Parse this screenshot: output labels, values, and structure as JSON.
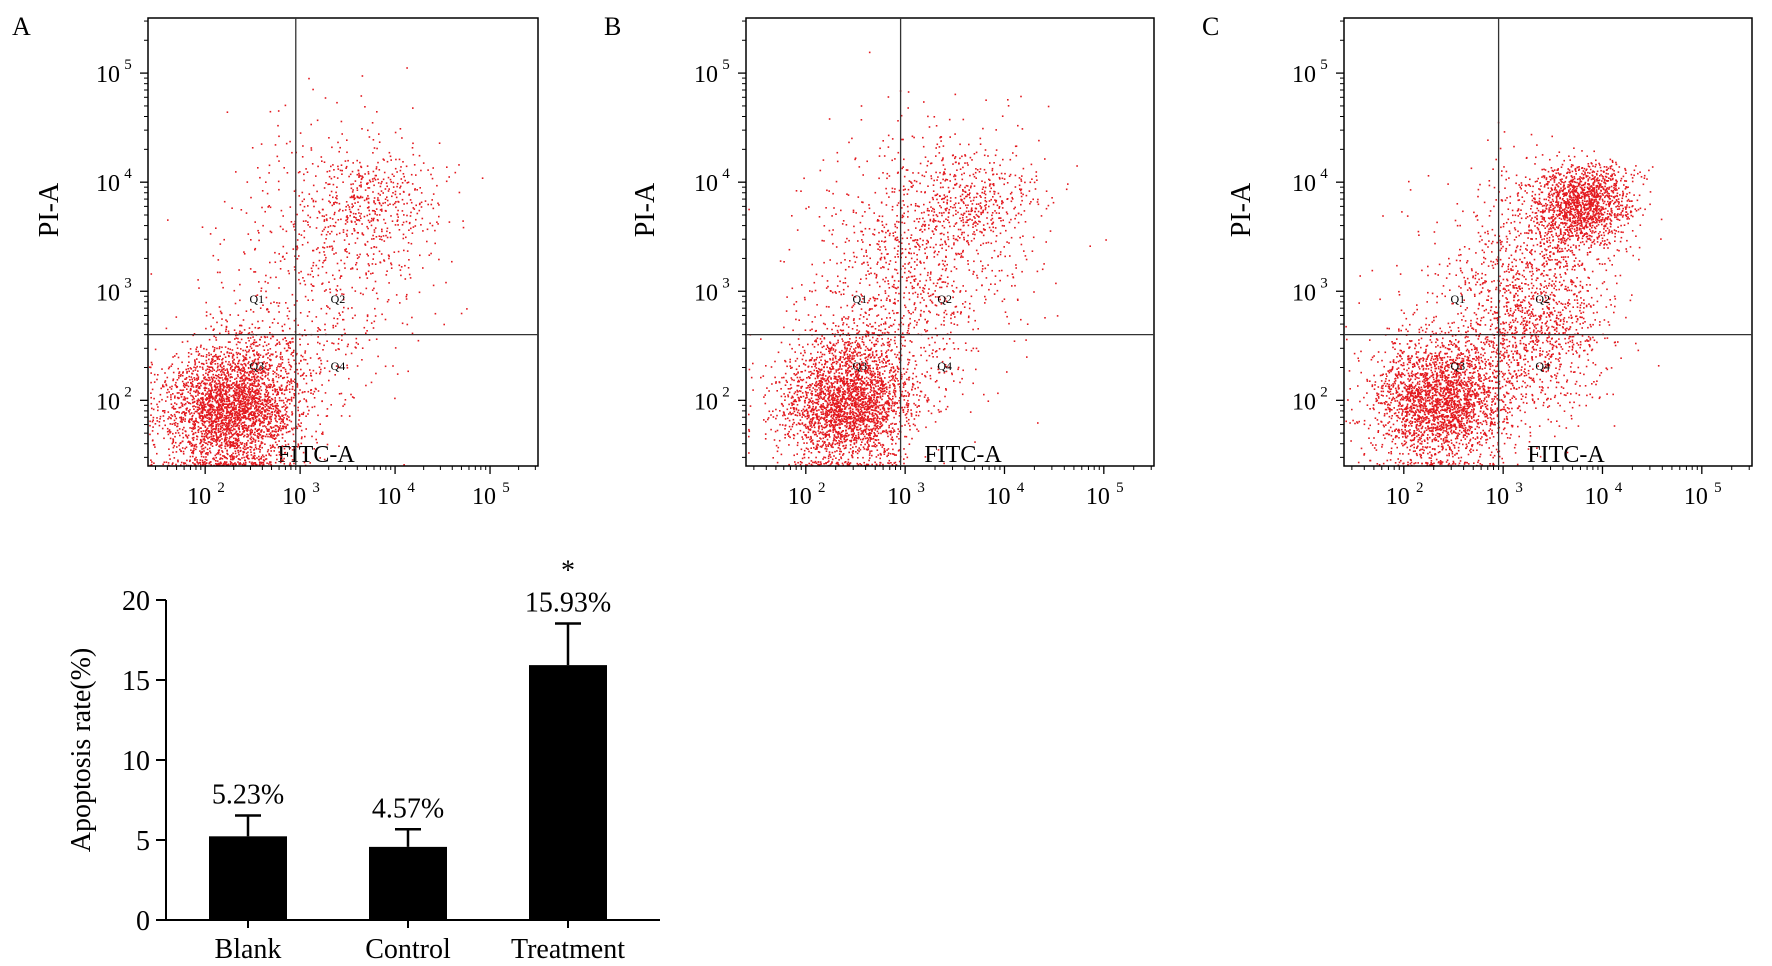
{
  "chart_data": [
    {
      "id": "A",
      "type": "scatter",
      "panel_label": "A",
      "xlabel": "FITC-A",
      "ylabel": "PI-A",
      "x_scale": "log",
      "y_scale": "log",
      "x_ticks": [
        {
          "value": 100,
          "base": "10",
          "exp": "2"
        },
        {
          "value": 1000,
          "base": "10",
          "exp": "3"
        },
        {
          "value": 10000,
          "base": "10",
          "exp": "4"
        },
        {
          "value": 100000,
          "base": "10",
          "exp": "5"
        }
      ],
      "y_ticks": [
        {
          "value": 100,
          "base": "10",
          "exp": "2"
        },
        {
          "value": 1000,
          "base": "10",
          "exp": "3"
        },
        {
          "value": 10000,
          "base": "10",
          "exp": "4"
        },
        {
          "value": 100000,
          "base": "10",
          "exp": "5"
        }
      ],
      "quadrant_gate": {
        "x": 900,
        "y": 400
      },
      "quadrants": [
        {
          "label": "Q1",
          "x": 350,
          "y": 780
        },
        {
          "label": "Q2",
          "x": 2500,
          "y": 780
        },
        {
          "label": "Q3",
          "x": 350,
          "y": 190
        },
        {
          "label": "Q4",
          "x": 2500,
          "y": 190
        }
      ],
      "populations": [
        {
          "cx": 180,
          "cy": 80,
          "sx": 0.35,
          "sy": 0.28,
          "n": 2600
        },
        {
          "cx": 260,
          "cy": 140,
          "sx": 0.3,
          "sy": 0.3,
          "n": 500
        },
        {
          "cx": 1800,
          "cy": 2500,
          "sx": 0.55,
          "sy": 0.6,
          "n": 550
        },
        {
          "cx": 6000,
          "cy": 7000,
          "sx": 0.35,
          "sy": 0.25,
          "n": 380
        },
        {
          "cx": 800,
          "cy": 250,
          "sx": 0.45,
          "sy": 0.35,
          "n": 200
        }
      ],
      "xlim": [
        25,
        320000
      ],
      "ylim": [
        25,
        320000
      ]
    },
    {
      "id": "B",
      "type": "scatter",
      "panel_label": "B",
      "xlabel": "FITC-A",
      "ylabel": "PI-A",
      "x_scale": "log",
      "y_scale": "log",
      "x_ticks": [
        {
          "value": 100,
          "base": "10",
          "exp": "2"
        },
        {
          "value": 1000,
          "base": "10",
          "exp": "3"
        },
        {
          "value": 10000,
          "base": "10",
          "exp": "4"
        },
        {
          "value": 100000,
          "base": "10",
          "exp": "5"
        }
      ],
      "y_ticks": [
        {
          "value": 100,
          "base": "10",
          "exp": "2"
        },
        {
          "value": 1000,
          "base": "10",
          "exp": "3"
        },
        {
          "value": 10000,
          "base": "10",
          "exp": "4"
        },
        {
          "value": 100000,
          "base": "10",
          "exp": "5"
        }
      ],
      "quadrant_gate": {
        "x": 900,
        "y": 400
      },
      "quadrants": [
        {
          "label": "Q1",
          "x": 350,
          "y": 780
        },
        {
          "label": "Q2",
          "x": 2500,
          "y": 780
        },
        {
          "label": "Q3",
          "x": 350,
          "y": 190
        },
        {
          "label": "Q4",
          "x": 2500,
          "y": 190
        }
      ],
      "populations": [
        {
          "cx": 250,
          "cy": 90,
          "sx": 0.32,
          "sy": 0.28,
          "n": 2300
        },
        {
          "cx": 350,
          "cy": 160,
          "sx": 0.35,
          "sy": 0.3,
          "n": 500
        },
        {
          "cx": 1500,
          "cy": 2000,
          "sx": 0.55,
          "sy": 0.6,
          "n": 750
        },
        {
          "cx": 4500,
          "cy": 7000,
          "sx": 0.35,
          "sy": 0.28,
          "n": 420
        },
        {
          "cx": 600,
          "cy": 1200,
          "sx": 0.4,
          "sy": 0.5,
          "n": 300
        }
      ],
      "xlim": [
        25,
        320000
      ],
      "ylim": [
        25,
        320000
      ]
    },
    {
      "id": "C",
      "type": "scatter",
      "panel_label": "C",
      "xlabel": "FITC-A",
      "ylabel": "PI-A",
      "x_scale": "log",
      "y_scale": "log",
      "x_ticks": [
        {
          "value": 100,
          "base": "10",
          "exp": "2"
        },
        {
          "value": 1000,
          "base": "10",
          "exp": "3"
        },
        {
          "value": 10000,
          "base": "10",
          "exp": "4"
        },
        {
          "value": 100000,
          "base": "10",
          "exp": "5"
        }
      ],
      "y_ticks": [
        {
          "value": 100,
          "base": "10",
          "exp": "2"
        },
        {
          "value": 1000,
          "base": "10",
          "exp": "3"
        },
        {
          "value": 10000,
          "base": "10",
          "exp": "4"
        },
        {
          "value": 100000,
          "base": "10",
          "exp": "5"
        }
      ],
      "quadrant_gate": {
        "x": 900,
        "y": 400
      },
      "quadrants": [
        {
          "label": "Q1",
          "x": 350,
          "y": 780
        },
        {
          "label": "Q2",
          "x": 2500,
          "y": 780
        },
        {
          "label": "Q3",
          "x": 350,
          "y": 190
        },
        {
          "label": "Q4",
          "x": 2500,
          "y": 190
        }
      ],
      "populations": [
        {
          "cx": 220,
          "cy": 100,
          "sx": 0.32,
          "sy": 0.28,
          "n": 2400
        },
        {
          "cx": 1800,
          "cy": 300,
          "sx": 0.35,
          "sy": 0.35,
          "n": 600
        },
        {
          "cx": 2500,
          "cy": 1500,
          "sx": 0.35,
          "sy": 0.45,
          "n": 800
        },
        {
          "cx": 6500,
          "cy": 6500,
          "sx": 0.25,
          "sy": 0.18,
          "n": 1400
        },
        {
          "cx": 1000,
          "cy": 800,
          "sx": 0.55,
          "sy": 0.55,
          "n": 400
        }
      ],
      "xlim": [
        25,
        320000
      ],
      "ylim": [
        25,
        320000
      ]
    },
    {
      "id": "D",
      "type": "bar",
      "title": "",
      "xlabel": "",
      "ylabel": "Apoptosis rate(%)",
      "categories": [
        "Blank",
        "Control",
        "Treatment"
      ],
      "values": [
        5.23,
        4.57,
        15.93
      ],
      "errors": [
        1.3,
        1.1,
        2.6
      ],
      "value_labels": [
        "5.23%",
        "4.57%",
        "15.93%"
      ],
      "significance": [
        "",
        "",
        "*"
      ],
      "ylim": [
        0,
        20
      ],
      "y_ticks": [
        0,
        5,
        10,
        15,
        20
      ]
    }
  ],
  "colors": {
    "dots": "#e3191f",
    "bars": "#000000",
    "axes": "#000000",
    "gate": "#333333",
    "quadrant_text": "#222222"
  }
}
